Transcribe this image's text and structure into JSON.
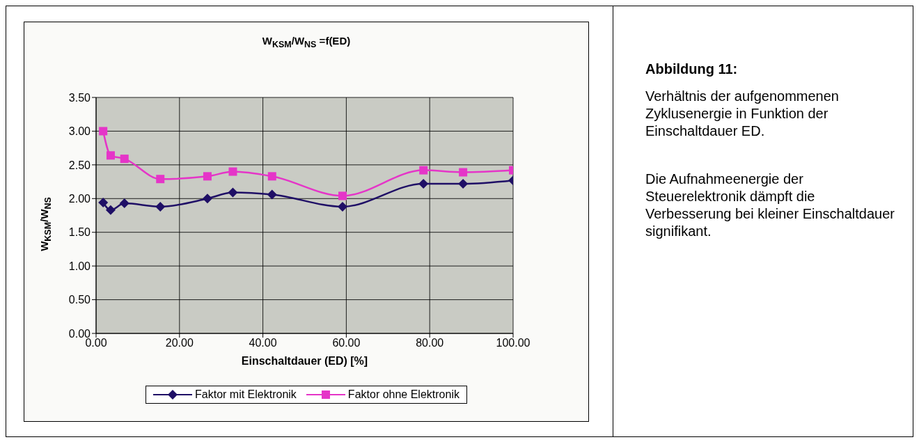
{
  "chart_data": {
    "type": "line",
    "title": "W$_{KSM}$/W$_{NS}$ =f(ED)",
    "xlabel": "Einschaltdauer (ED) [%]",
    "ylabel": "W$_{KSM}$/W$_{NS}$",
    "x": [
      1.7,
      3.5,
      6.8,
      15.4,
      26.7,
      32.8,
      42.2,
      59.1,
      78.5,
      88.0,
      100.0
    ],
    "series": [
      {
        "name": "Faktor mit Elektronik",
        "color": "#1f0f66",
        "marker": "diamond",
        "values": [
          1.94,
          1.83,
          1.93,
          1.88,
          2.0,
          2.09,
          2.06,
          1.88,
          2.22,
          2.22,
          2.27
        ]
      },
      {
        "name": "Faktor ohne Elektronik",
        "color": "#e535c8",
        "marker": "square",
        "values": [
          3.0,
          2.64,
          2.59,
          2.29,
          2.33,
          2.4,
          2.33,
          2.04,
          2.42,
          2.39,
          2.42
        ]
      }
    ],
    "xlim": [
      0,
      100
    ],
    "xticks": [
      {
        "value": 0,
        "label": "0.00"
      },
      {
        "value": 20,
        "label": "20.00"
      },
      {
        "value": 40,
        "label": "40.00"
      },
      {
        "value": 60,
        "label": "60.00"
      },
      {
        "value": 80,
        "label": "80.00"
      },
      {
        "value": 100,
        "label": "100.00"
      }
    ],
    "ylim": [
      0,
      3.5
    ],
    "yticks": [
      {
        "value": 0,
        "label": "0.00"
      },
      {
        "value": 0.5,
        "label": "0.50"
      },
      {
        "value": 1,
        "label": "1.00"
      },
      {
        "value": 1.5,
        "label": "1.50"
      },
      {
        "value": 2,
        "label": "2.00"
      },
      {
        "value": 2.5,
        "label": "2.50"
      },
      {
        "value": 3,
        "label": "3.00"
      },
      {
        "value": 3.5,
        "label": "3.50"
      }
    ],
    "grid": true,
    "legend": "bottom",
    "annotations": [
      "Abbildung 11:",
      "Verhältnis der aufgenommenen Zyklusenergie in Funktion der Einschaltdauer ED.",
      "Die Aufnahmeenergie der Steuerelektronik dämpft die Verbesserung bei kleiner Einschaltdauer signifikant."
    ]
  }
}
